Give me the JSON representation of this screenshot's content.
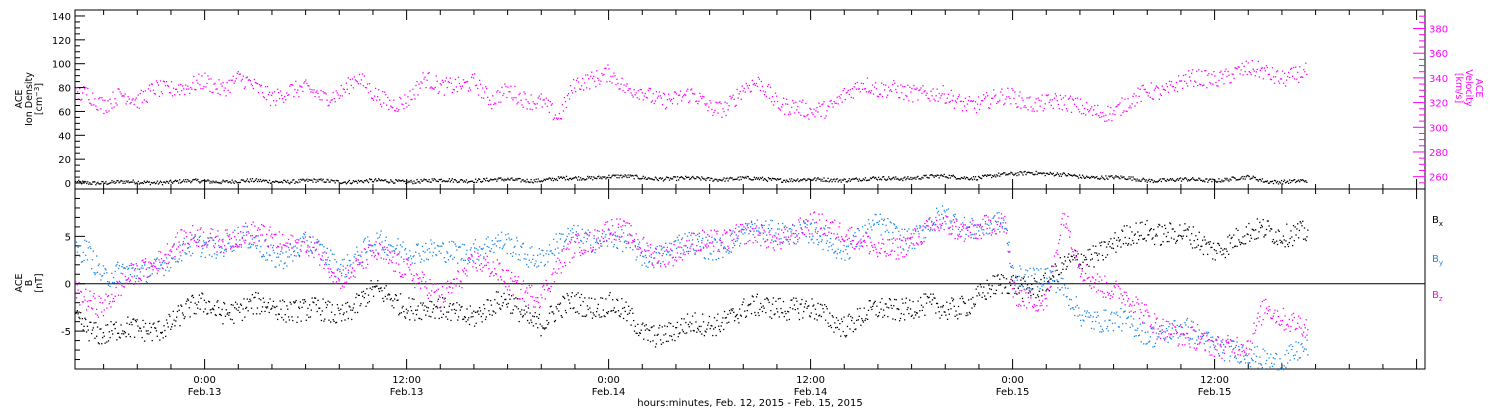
{
  "chart_data": [
    {
      "panel": "top",
      "type": "scatter",
      "xlabel": "hours:minutes, Feb. 12, 2015 - Feb. 15, 2015",
      "x_tick_labels": [
        {
          "time": "0:00",
          "date": "Feb.13",
          "hours": 24
        },
        {
          "time": "12:00",
          "date": "Feb.13",
          "hours": 36
        },
        {
          "time": "0:00",
          "date": "Feb.14",
          "hours": 48
        },
        {
          "time": "12:00",
          "date": "Feb.14",
          "hours": 60
        },
        {
          "time": "0:00",
          "date": "Feb.15",
          "hours": 72
        },
        {
          "time": "12:00",
          "date": "Feb.15",
          "hours": 84
        }
      ],
      "xlim_hours": [
        16.3,
        96.5
      ],
      "left_axis": {
        "label_lines": [
          "ACE",
          "Ion Density",
          "[cm^-3]"
        ],
        "ylim": [
          -5,
          145
        ],
        "ticks": [
          0,
          20,
          40,
          60,
          80,
          100,
          120,
          140
        ],
        "color": "#000000"
      },
      "right_axis": {
        "label_lines": [
          "ACE",
          "Velocity",
          "[km/s]"
        ],
        "ylim": [
          250,
          395
        ],
        "ticks": [
          260,
          280,
          300,
          320,
          340,
          360,
          380
        ],
        "color": "#ff00ff"
      },
      "series": [
        {
          "key": "density",
          "axis": "left",
          "color": "#000000",
          "x_hours": [
            16.3,
            20,
            24,
            28,
            32,
            36,
            40,
            44,
            48,
            50,
            52,
            56,
            60,
            64,
            68,
            70,
            72,
            73,
            74,
            76,
            78,
            80,
            84,
            86,
            87,
            89.5
          ],
          "y": [
            1,
            1,
            2,
            2,
            2,
            2,
            3,
            3,
            6,
            5,
            4,
            4,
            3,
            4,
            6,
            5,
            8,
            10,
            8,
            6,
            5,
            3,
            3,
            5,
            2,
            2
          ]
        },
        {
          "key": "velocity",
          "axis": "right",
          "color": "#ff00ff",
          "x_hours": [
            16.3,
            17,
            18,
            19,
            20,
            21,
            22,
            23,
            24,
            25,
            26,
            27,
            28,
            29,
            30,
            31,
            32,
            33,
            34,
            35,
            36,
            37,
            38,
            39,
            40,
            41,
            42,
            43,
            44,
            45,
            46,
            47,
            48,
            49,
            50,
            51,
            52,
            53,
            54,
            55,
            56,
            57,
            58,
            59,
            60,
            61,
            62,
            63,
            64,
            65,
            66,
            67,
            68,
            69,
            70,
            71,
            72,
            73,
            74,
            75,
            76,
            77,
            78,
            79,
            80,
            81,
            82,
            83,
            84,
            85,
            86,
            87,
            88,
            89.5
          ],
          "y": [
            325,
            330,
            320,
            325,
            320,
            335,
            332,
            330,
            338,
            334,
            340,
            330,
            325,
            333,
            330,
            322,
            330,
            343,
            325,
            318,
            325,
            340,
            330,
            335,
            340,
            320,
            328,
            325,
            323,
            305,
            335,
            342,
            345,
            328,
            330,
            325,
            322,
            325,
            318,
            318,
            330,
            335,
            322,
            318,
            310,
            315,
            330,
            335,
            328,
            333,
            330,
            325,
            325,
            322,
            320,
            322,
            325,
            322,
            320,
            318,
            318,
            315,
            310,
            320,
            333,
            330,
            335,
            340,
            342,
            343,
            345,
            346,
            342,
            343
          ]
        }
      ]
    },
    {
      "panel": "bottom",
      "type": "scatter",
      "left_axis": {
        "label_lines": [
          "ACE",
          "B",
          "[nT]"
        ],
        "ylim": [
          -9,
          10
        ],
        "ticks": [
          -5,
          0,
          5
        ]
      },
      "zero_line": true,
      "legend": {
        "placement": "right"
      },
      "series": [
        {
          "key": "bx",
          "name_main": "B",
          "name_sub": "x",
          "color": "#000000",
          "x_hours": [
            16.3,
            18,
            20,
            22,
            24,
            26,
            28,
            30,
            32,
            34,
            36,
            38,
            40,
            42,
            44,
            46,
            48,
            50,
            52,
            54,
            56,
            58,
            60,
            62,
            64,
            66,
            68,
            70,
            72,
            73,
            74,
            76,
            78,
            80,
            82,
            84,
            86,
            87,
            89.5
          ],
          "y": [
            -4,
            -5,
            -5,
            -4,
            -2,
            -3,
            -2,
            -3,
            -3,
            -1,
            -2,
            -3,
            -3,
            -2,
            -4,
            -2,
            -2,
            -5,
            -5,
            -4,
            -3,
            -2,
            -3,
            -4,
            -3,
            -2,
            -3,
            -1,
            0,
            0,
            0,
            3,
            4,
            6,
            5,
            4,
            5,
            6,
            5
          ]
        },
        {
          "key": "by",
          "name_main": "B",
          "name_sub": "y",
          "color": "#1e88e5",
          "x_hours": [
            16.3,
            17,
            18,
            20,
            22,
            24,
            26,
            28,
            30,
            32,
            34,
            36,
            38,
            40,
            42,
            44,
            46,
            48,
            50,
            52,
            54,
            56,
            58,
            60,
            62,
            64,
            66,
            68,
            70,
            71.5,
            72,
            73,
            74,
            75,
            76,
            78,
            80,
            82,
            84,
            86,
            87,
            89.5
          ],
          "y": [
            3,
            4,
            1,
            1,
            3,
            4,
            5,
            3,
            4,
            2,
            4,
            4,
            3,
            4,
            4,
            3,
            5,
            5,
            3,
            4,
            4,
            5,
            6,
            5,
            4,
            6,
            5,
            7,
            6,
            6,
            1,
            1,
            1,
            -1,
            -3,
            -4,
            -5,
            -5,
            -6,
            -8,
            -8,
            -7
          ]
        },
        {
          "key": "bz",
          "name_main": "B",
          "name_sub": "z",
          "color": "#ff00ff",
          "x_hours": [
            16.3,
            18,
            20,
            22,
            24,
            26,
            28,
            30,
            32,
            34,
            36,
            38,
            40,
            42,
            44,
            46,
            48,
            50,
            52,
            54,
            56,
            58,
            60,
            62,
            64,
            66,
            68,
            70,
            71.5,
            72,
            73,
            74,
            75,
            76,
            78,
            80,
            82,
            84,
            86,
            87,
            89.5
          ],
          "y": [
            -1,
            -2,
            1,
            4,
            5,
            5,
            5,
            4,
            1,
            3,
            2,
            -2,
            3,
            0,
            -1,
            4,
            6,
            4,
            3,
            5,
            5,
            5,
            6,
            6,
            3,
            5,
            6,
            6,
            6,
            -1,
            -1,
            -2,
            7,
            2,
            -1,
            -3,
            -6,
            -6,
            -7,
            -2,
            -5
          ]
        }
      ]
    }
  ]
}
